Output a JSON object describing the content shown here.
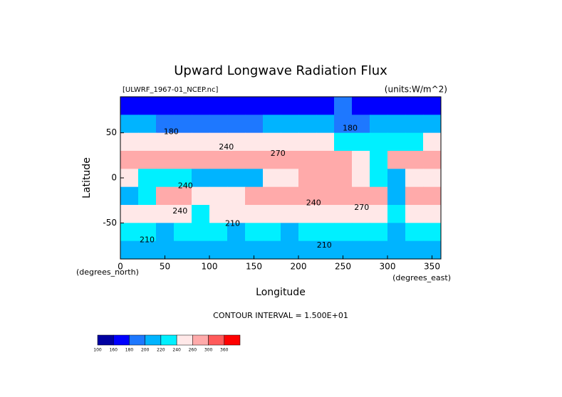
{
  "chart_data": {
    "type": "contour",
    "title": "Upward Longwave Radiation Flux",
    "source": "[ULWRF_1967-01_NCEP.nc]",
    "units": "(units:W/m^2)",
    "x_label": "Longitude",
    "y_label": "Latitude",
    "x_unit": "(degrees_east)",
    "y_unit": "(degrees_north)",
    "note": "CONTOUR INTERVAL = 1.500E+01",
    "xlim": [
      0,
      360
    ],
    "ylim": [
      -90,
      90
    ],
    "xticks": [
      0,
      50,
      100,
      150,
      200,
      250,
      300,
      350
    ],
    "yticks": [
      -50,
      0,
      50
    ],
    "x": [
      10,
      30,
      50,
      70,
      90,
      110,
      130,
      150,
      170,
      190,
      210,
      230,
      250,
      270,
      290,
      310,
      330,
      350
    ],
    "y": [
      80,
      60,
      40,
      20,
      0,
      -20,
      -40,
      -60,
      -80
    ],
    "z": [
      [
        170,
        165,
        170,
        175,
        170,
        165,
        170,
        175,
        170,
        165,
        170,
        175,
        180,
        170,
        165,
        165,
        170,
        170
      ],
      [
        200,
        200,
        195,
        190,
        190,
        185,
        190,
        195,
        200,
        200,
        205,
        200,
        195,
        195,
        210,
        200,
        205,
        200
      ],
      [
        250,
        250,
        245,
        240,
        245,
        240,
        245,
        250,
        250,
        245,
        240,
        240,
        220,
        225,
        230,
        230,
        235,
        245
      ],
      [
        270,
        270,
        275,
        270,
        265,
        260,
        265,
        270,
        275,
        275,
        270,
        265,
        260,
        255,
        220,
        265,
        270,
        270
      ],
      [
        240,
        235,
        230,
        225,
        215,
        205,
        210,
        215,
        250,
        255,
        265,
        265,
        260,
        250,
        230,
        200,
        255,
        250
      ],
      [
        215,
        220,
        275,
        260,
        250,
        250,
        240,
        265,
        270,
        275,
        280,
        280,
        280,
        280,
        270,
        205,
        275,
        270
      ],
      [
        245,
        245,
        240,
        240,
        235,
        245,
        240,
        240,
        245,
        240,
        245,
        245,
        240,
        240,
        245,
        235,
        240,
        245
      ],
      [
        220,
        220,
        215,
        220,
        225,
        220,
        215,
        220,
        220,
        215,
        220,
        225,
        220,
        225,
        220,
        215,
        220,
        220
      ],
      [
        210,
        205,
        205,
        210,
        205,
        200,
        210,
        205,
        210,
        205,
        200,
        205,
        210,
        205,
        200,
        210,
        205,
        210
      ]
    ],
    "contour_labels": [
      {
        "value": 180,
        "lon": 57,
        "lat": 51
      },
      {
        "value": 180,
        "lon": 258,
        "lat": 55
      },
      {
        "value": 240,
        "lon": 119,
        "lat": 34
      },
      {
        "value": 270,
        "lon": 177,
        "lat": 27
      },
      {
        "value": 240,
        "lon": 73,
        "lat": -9
      },
      {
        "value": 240,
        "lon": 217,
        "lat": -28
      },
      {
        "value": 270,
        "lon": 271,
        "lat": -33
      },
      {
        "value": 240,
        "lon": 67,
        "lat": -37
      },
      {
        "value": 210,
        "lon": 126,
        "lat": -51
      },
      {
        "value": 210,
        "lon": 30,
        "lat": -69
      },
      {
        "value": 210,
        "lon": 229,
        "lat": -75
      }
    ],
    "colorbar": {
      "levels": [
        100,
        160,
        180,
        200,
        220,
        240,
        260,
        300,
        360
      ],
      "colors": [
        "#0000a0",
        "#0000ff",
        "#1e78ff",
        "#00b4ff",
        "#00f0ff",
        "#ffe8e8",
        "#ffaaaa",
        "#ff5a5a",
        "#ff0000"
      ]
    }
  }
}
